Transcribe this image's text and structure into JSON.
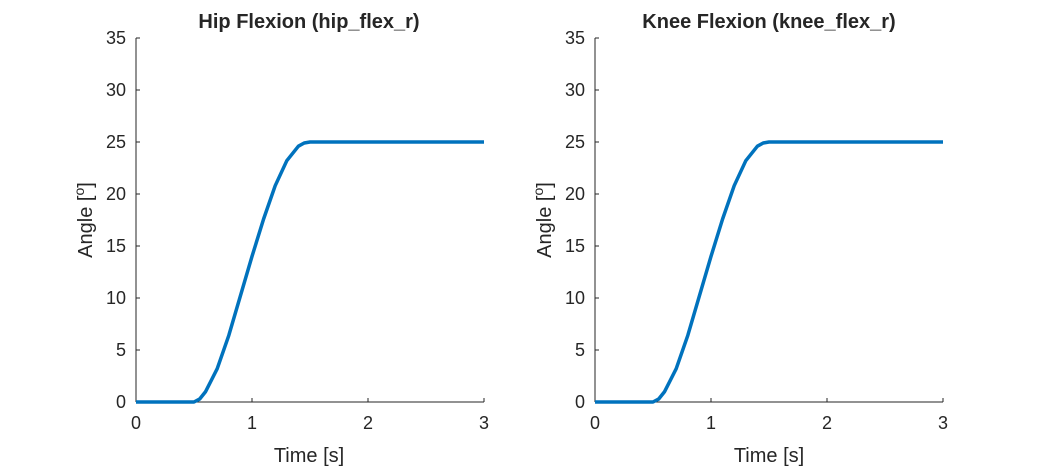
{
  "chart_data": [
    {
      "type": "line",
      "title": "Hip Flexion (hip_flex_r)",
      "xlabel": "Time [s]",
      "ylabel": "Angle [",
      "ylabel_sup": "o",
      "ylabel_end": "]",
      "xlim": [
        0,
        3
      ],
      "ylim": [
        0,
        35
      ],
      "xticks": [
        "0",
        "1",
        "2",
        "3"
      ],
      "yticks": [
        "0",
        "5",
        "10",
        "15",
        "20",
        "25",
        "30",
        "35"
      ],
      "grid": false,
      "line_color": "#0072BD",
      "series": [
        {
          "x": [
            0,
            0.5,
            0.55,
            0.6,
            0.7,
            0.8,
            0.9,
            1.0,
            1.1,
            1.2,
            1.3,
            1.4,
            1.45,
            1.5,
            3.0
          ],
          "y": [
            0,
            0,
            0.3,
            1.0,
            3.2,
            6.4,
            10.2,
            14.0,
            17.6,
            20.8,
            23.2,
            24.6,
            24.9,
            25,
            25
          ]
        }
      ]
    },
    {
      "type": "line",
      "title": "Knee Flexion (knee_flex_r)",
      "xlabel": "Time [s]",
      "ylabel": "Angle [",
      "ylabel_sup": "o",
      "ylabel_end": "]",
      "xlim": [
        0,
        3
      ],
      "ylim": [
        0,
        35
      ],
      "xticks": [
        "0",
        "1",
        "2",
        "3"
      ],
      "yticks": [
        "0",
        "5",
        "10",
        "15",
        "20",
        "25",
        "30",
        "35"
      ],
      "grid": false,
      "line_color": "#0072BD",
      "series": [
        {
          "x": [
            0,
            0.5,
            0.55,
            0.6,
            0.7,
            0.8,
            0.9,
            1.0,
            1.1,
            1.2,
            1.3,
            1.4,
            1.45,
            1.5,
            3.0
          ],
          "y": [
            0,
            0,
            0.3,
            1.0,
            3.2,
            6.4,
            10.2,
            14.0,
            17.6,
            20.8,
            23.2,
            24.6,
            24.9,
            25,
            25
          ]
        }
      ]
    }
  ]
}
